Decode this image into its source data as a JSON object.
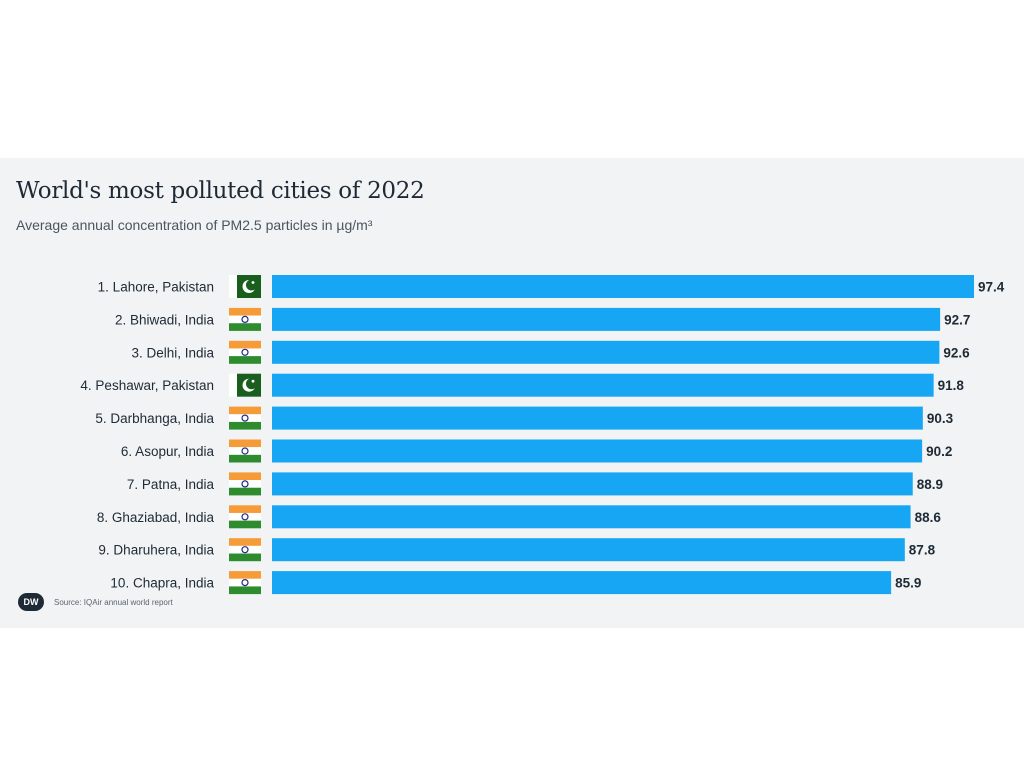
{
  "chart_data": {
    "type": "bar",
    "orientation": "horizontal",
    "title": "World's most polluted cities of 2022",
    "subtitle": "Average annual concentration of PM2.5 particles in µg/m³",
    "categories": [
      "1. Lahore, Pakistan",
      "2. Bhiwadi, India",
      "3. Delhi, India",
      "4. Peshawar, Pakistan",
      "5. Darbhanga, India",
      "6. Asopur, India",
      "7. Patna, India",
      "8. Ghaziabad, India",
      "9. Dharuhera, India",
      "10. Chapra, India"
    ],
    "values": [
      97.4,
      92.7,
      92.6,
      91.8,
      90.3,
      90.2,
      88.9,
      88.6,
      87.8,
      85.9
    ],
    "value_labels": [
      "97.4",
      "92.7",
      "92.6",
      "91.8",
      "90.3",
      "90.2",
      "88.9",
      "88.6",
      "87.8",
      "85.9"
    ],
    "flags": [
      "pakistan",
      "india",
      "india",
      "pakistan",
      "india",
      "india",
      "india",
      "india",
      "india",
      "india"
    ],
    "xlim": [
      0,
      97.4
    ],
    "grid": false,
    "legend": "none",
    "colors": {
      "bar": "#16a6f3",
      "text": "#1e2a35",
      "pakistan_green": "#1a5e1e",
      "india_saffron": "#f59b37",
      "india_green": "#2e8b2e",
      "india_chakra": "#1d2a8c"
    }
  },
  "footer": {
    "logo_text": "DW",
    "source": "Source: IQAir annual world report"
  }
}
